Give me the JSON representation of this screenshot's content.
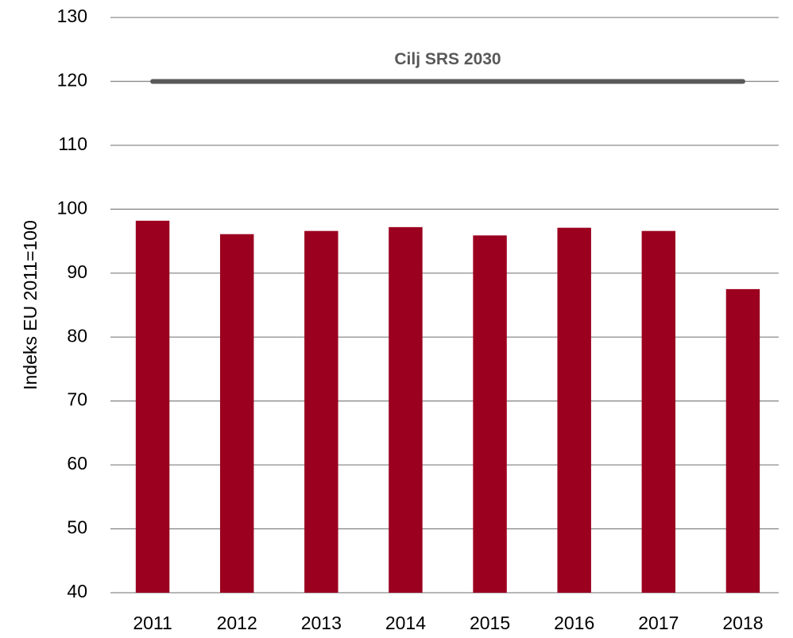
{
  "chart_data": {
    "type": "bar",
    "y_label": "Indeks EU 2011=100",
    "categories": [
      "2011",
      "2012",
      "2013",
      "2014",
      "2015",
      "2016",
      "2017",
      "2018"
    ],
    "values": [
      98.2,
      96.1,
      96.6,
      97.2,
      95.9,
      97.1,
      96.6,
      87.5
    ],
    "color": "#9b001f",
    "ylim": [
      40,
      130
    ],
    "yticks": [
      40,
      50,
      60,
      70,
      80,
      90,
      100,
      110,
      120,
      130
    ],
    "grid": true,
    "target": {
      "label": "Cilj SRS 2030",
      "value": 120,
      "color": "#595959"
    }
  }
}
